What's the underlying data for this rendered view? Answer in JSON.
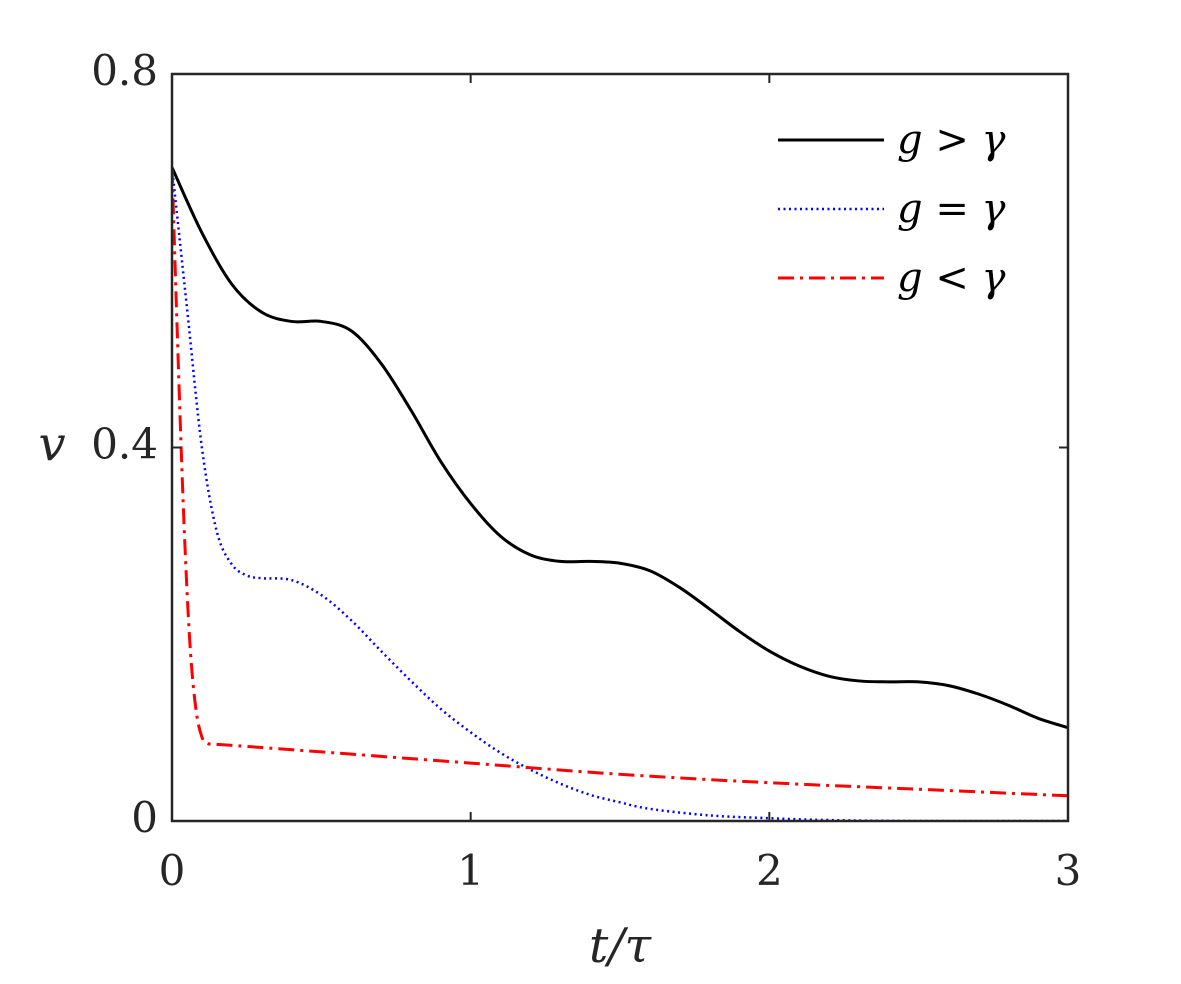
{
  "chart_data": {
    "type": "line",
    "title": "",
    "xlabel": "t/τ",
    "ylabel": "v",
    "xlim": [
      0,
      3
    ],
    "ylim": [
      0,
      0.8
    ],
    "xticks": [
      0,
      1,
      2,
      3
    ],
    "xtick_labels": [
      "0",
      "1",
      "2",
      "3"
    ],
    "yticks": [
      0,
      0.4,
      0.8
    ],
    "ytick_labels": [
      "0",
      "0.4",
      "0.8"
    ],
    "grid": false,
    "legend_position": "top-right",
    "colors": {
      "axis": "#262626",
      "g_gt_gamma": "#000000",
      "g_eq_gamma": "#0000ff",
      "g_lt_gamma": "#ff0000"
    },
    "series": [
      {
        "name": "g > γ",
        "style": "solid",
        "color": "#000000",
        "x": [
          0,
          0.1,
          0.2,
          0.3,
          0.4,
          0.5,
          0.6,
          0.7,
          0.8,
          0.9,
          1.0,
          1.1,
          1.2,
          1.3,
          1.4,
          1.5,
          1.6,
          1.7,
          1.8,
          1.9,
          2.0,
          2.1,
          2.2,
          2.3,
          2.4,
          2.5,
          2.6,
          2.7,
          2.8,
          2.9,
          3.0
        ],
        "y": [
          0.7,
          0.63,
          0.575,
          0.545,
          0.535,
          0.535,
          0.525,
          0.49,
          0.44,
          0.385,
          0.34,
          0.305,
          0.285,
          0.278,
          0.278,
          0.276,
          0.268,
          0.25,
          0.227,
          0.203,
          0.182,
          0.166,
          0.155,
          0.15,
          0.149,
          0.149,
          0.145,
          0.136,
          0.124,
          0.11,
          0.1
        ]
      },
      {
        "name": "g = γ",
        "style": "dotted",
        "color": "#0000ff",
        "x": [
          0,
          0.05,
          0.1,
          0.15,
          0.2,
          0.25,
          0.3,
          0.4,
          0.5,
          0.6,
          0.7,
          0.8,
          0.9,
          1.0,
          1.1,
          1.2,
          1.3,
          1.4,
          1.5,
          1.6,
          1.8,
          2.0,
          2.2,
          2.5,
          3.0
        ],
        "y": [
          0.7,
          0.55,
          0.4,
          0.31,
          0.275,
          0.263,
          0.26,
          0.258,
          0.242,
          0.215,
          0.182,
          0.15,
          0.12,
          0.095,
          0.073,
          0.055,
          0.04,
          0.028,
          0.02,
          0.013,
          0.006,
          0.003,
          0.001,
          0.0,
          0.0
        ]
      },
      {
        "name": "g < γ",
        "style": "dashdot",
        "color": "#ff0000",
        "x": [
          0,
          0.02,
          0.04,
          0.06,
          0.08,
          0.1,
          0.12,
          0.15,
          0.2,
          0.5,
          1.0,
          1.5,
          2.0,
          2.5,
          3.0
        ],
        "y": [
          0.7,
          0.5,
          0.32,
          0.19,
          0.12,
          0.09,
          0.083,
          0.082,
          0.081,
          0.074,
          0.062,
          0.05,
          0.041,
          0.034,
          0.027
        ]
      }
    ]
  }
}
